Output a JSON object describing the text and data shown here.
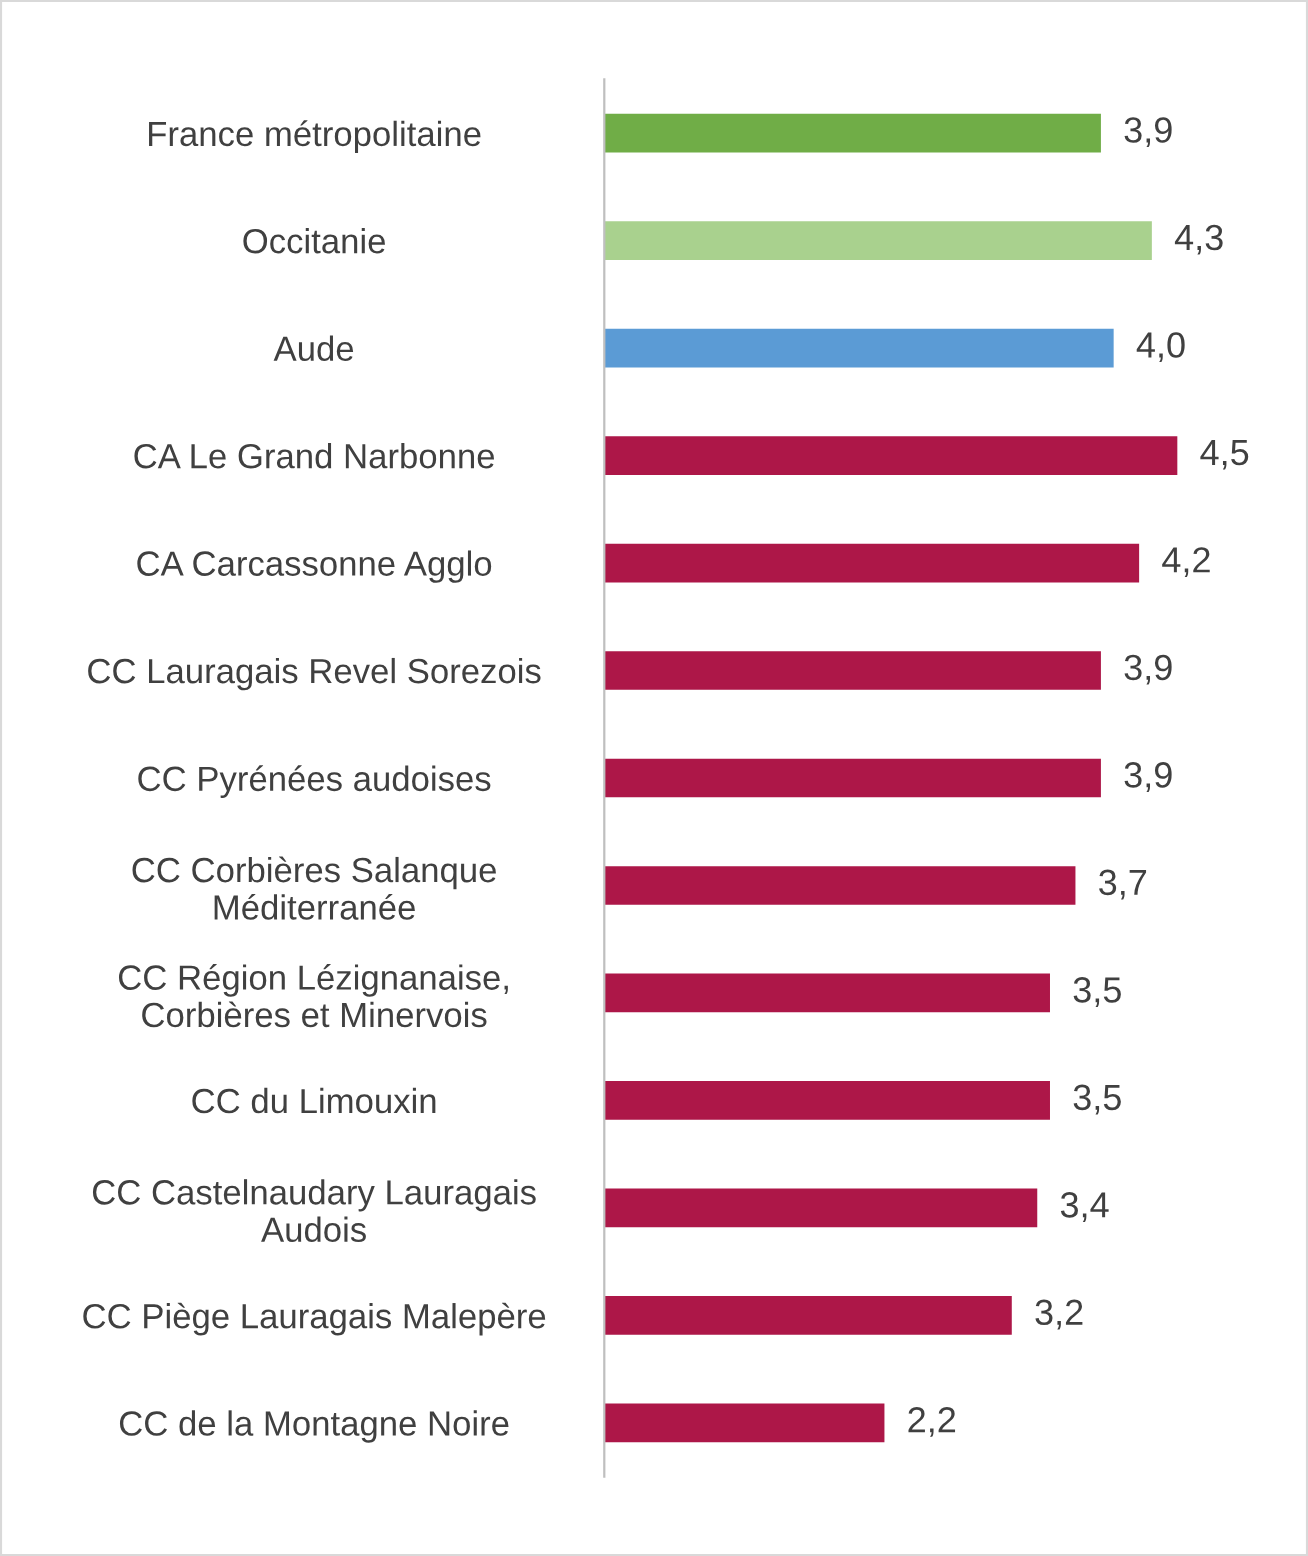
{
  "chart_data": {
    "type": "bar",
    "orientation": "horizontal",
    "categories": [
      "France métropolitaine",
      "Occitanie",
      "Aude",
      "CA Le Grand Narbonne",
      "CA Carcassonne Agglo",
      "CC Lauragais Revel Sorezois",
      "CC Pyrénées audoises",
      "CC Corbières Salanque\nMéditerranée",
      "CC Région Lézignanaise,\nCorbières et Minervois",
      "CC du Limouxin",
      "CC Castelnaudary Lauragais\nAudois",
      "CC Piège Lauragais Malepère",
      "CC de la Montagne Noire"
    ],
    "values": [
      3.9,
      4.3,
      4.0,
      4.5,
      4.2,
      3.9,
      3.9,
      3.7,
      3.5,
      3.5,
      3.4,
      3.2,
      2.2
    ],
    "value_labels": [
      "3,9",
      "4,3",
      "4,0",
      "4,5",
      "4,2",
      "3,9",
      "3,9",
      "3,7",
      "3,5",
      "3,5",
      "3,4",
      "3,2",
      "2,2"
    ],
    "colors": [
      "#70ad47",
      "#a9d18e",
      "#5b9bd5",
      "#ad1748",
      "#ad1748",
      "#ad1748",
      "#ad1748",
      "#ad1748",
      "#ad1748",
      "#ad1748",
      "#ad1748",
      "#ad1748",
      "#ad1748"
    ],
    "grid": false,
    "legend": false
  }
}
